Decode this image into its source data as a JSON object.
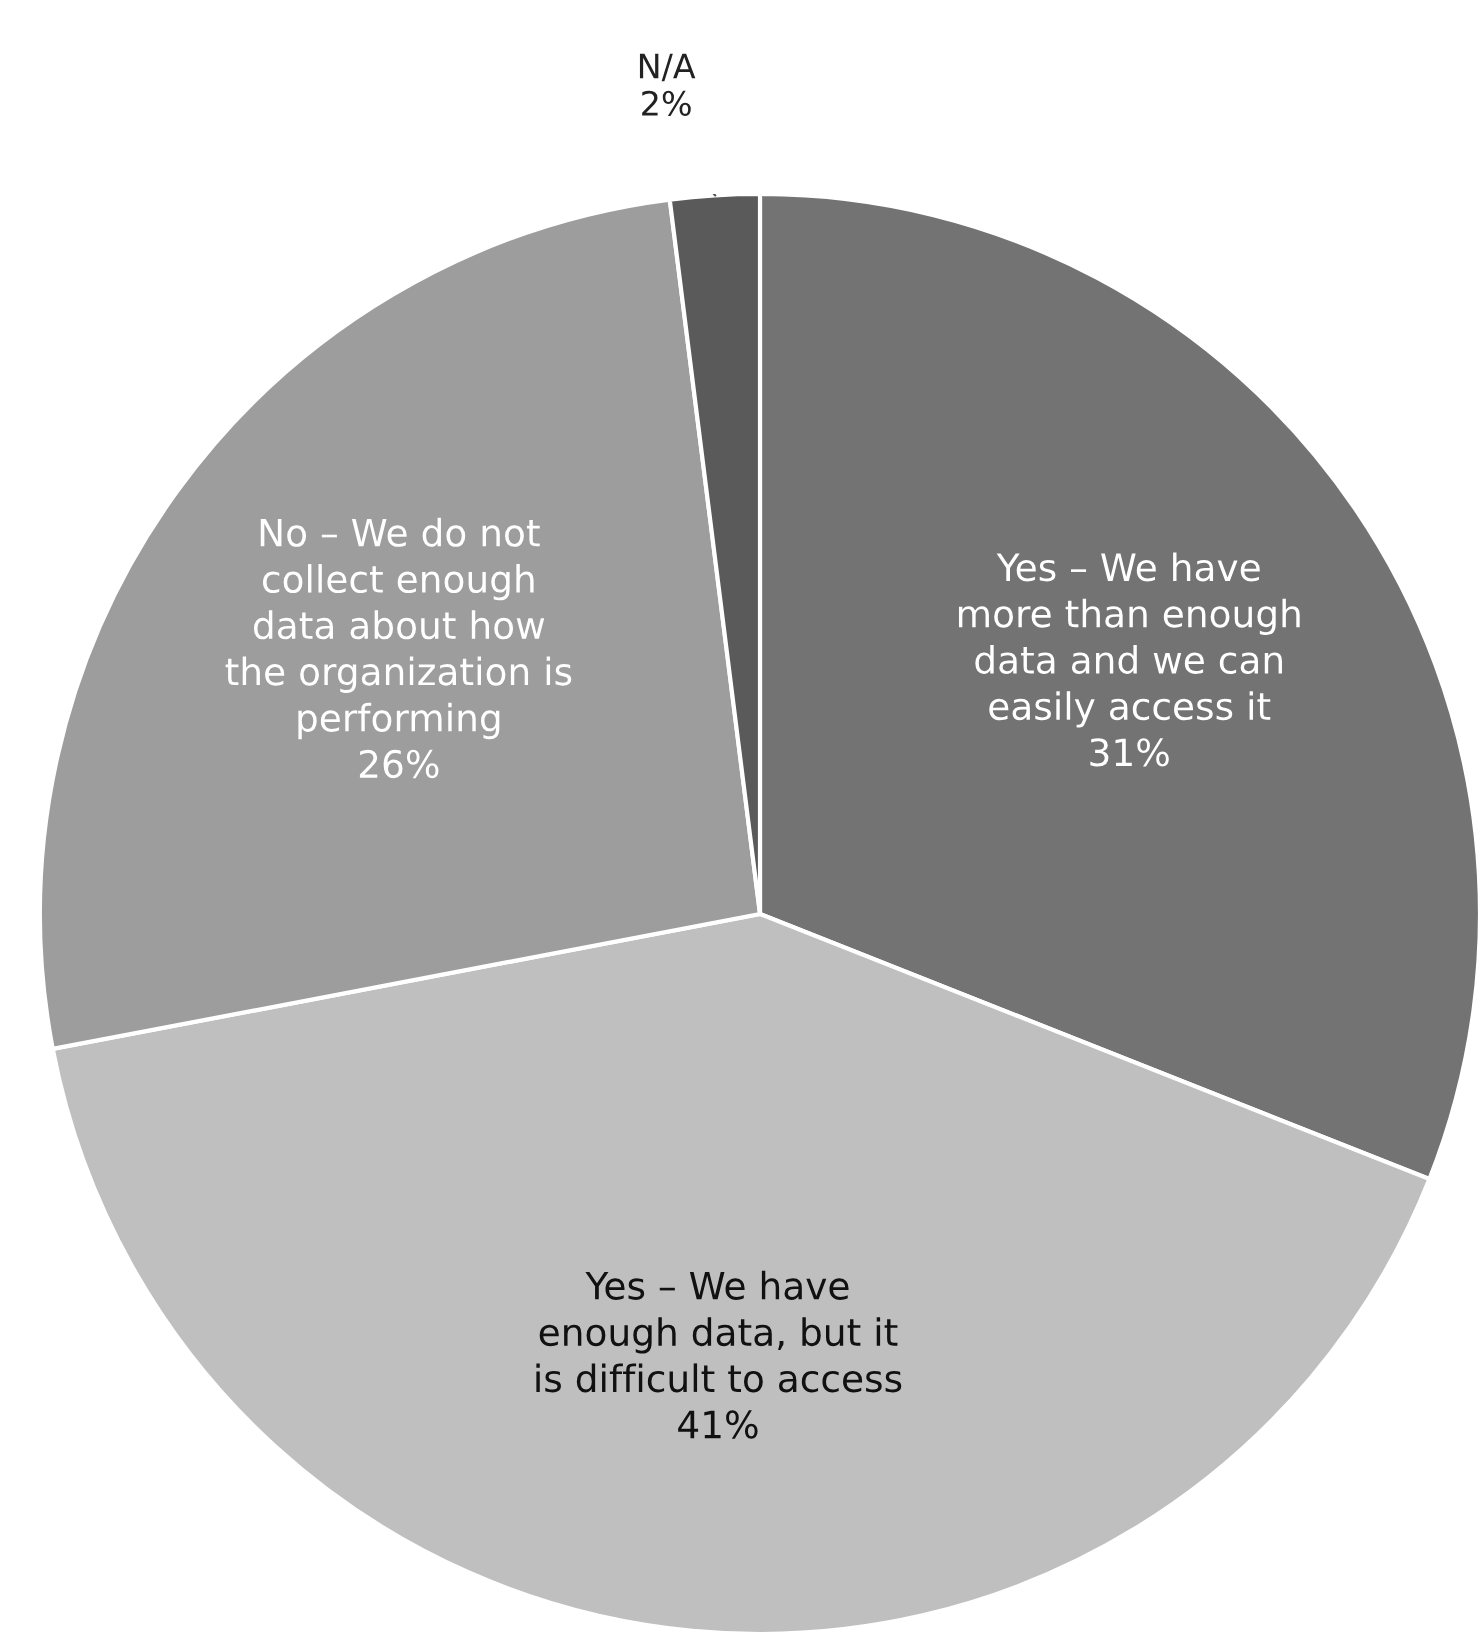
{
  "chart_data": {
    "type": "pie",
    "categories": [
      "Yes – We have\nmore than enough\ndata and we can\neasily access it",
      "Yes – We have\nenough data, but it\nis difficult to access",
      "No – We do not\ncollect enough\ndata about how\nthe organization is\nperforming",
      "N/A"
    ],
    "values": [
      31,
      41,
      26,
      2
    ],
    "value_labels": [
      "31%",
      "41%",
      "26%",
      "2%"
    ],
    "colors": [
      "#737373",
      "#bfbfbf",
      "#9d9d9d",
      "#5a5a5a"
    ],
    "legend": false
  }
}
